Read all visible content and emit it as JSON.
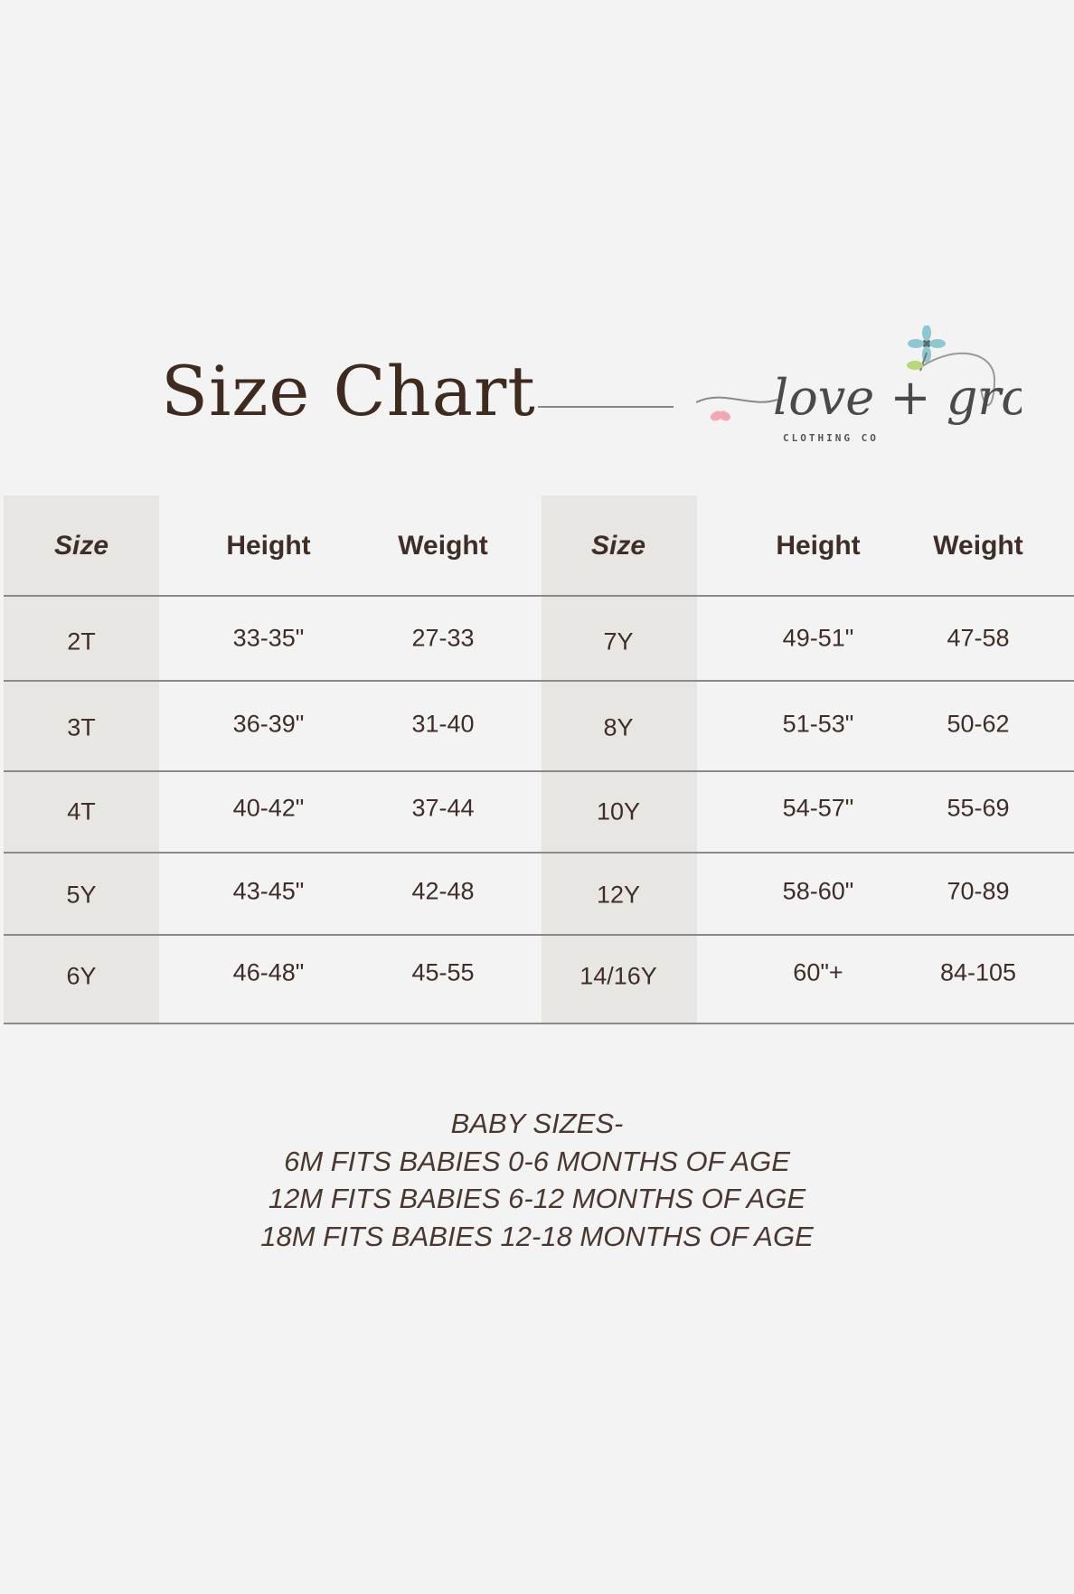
{
  "title": "Size Chart",
  "logo": {
    "text": "love + grow",
    "subtext": "CLOTHING CO",
    "colors": {
      "heart": "#f2a7b5",
      "flower": "#8fc7d1",
      "leaf": "#b7d77a",
      "ink": "#555555"
    }
  },
  "colors": {
    "background": "#f3f3f3",
    "shade": "#e8e6e3",
    "text": "#3f2e27",
    "rule": "#8c8987"
  },
  "table": {
    "left": {
      "headers": [
        "Size",
        "Height",
        "Weight"
      ],
      "rows": [
        [
          "2T",
          "33-35\"",
          "27-33"
        ],
        [
          "3T",
          "36-39\"",
          "31-40"
        ],
        [
          "4T",
          "40-42\"",
          "37-44"
        ],
        [
          "5Y",
          "43-45\"",
          "42-48"
        ],
        [
          "6Y",
          "46-48\"",
          "45-55"
        ]
      ]
    },
    "right": {
      "headers": [
        "Size",
        "Height",
        "Weight"
      ],
      "rows": [
        [
          "7Y",
          "49-51\"",
          "47-58"
        ],
        [
          "8Y",
          "51-53\"",
          "50-62"
        ],
        [
          "10Y",
          "54-57\"",
          "55-69"
        ],
        [
          "12Y",
          "58-60\"",
          "70-89"
        ],
        [
          "14/16Y",
          "60\"+",
          "84-105"
        ]
      ]
    }
  },
  "baby_sizes": [
    "BABY SIZES-",
    "6M FITS BABIES 0-6 MONTHS OF AGE",
    "12M FITS BABIES 6-12 MONTHS OF AGE",
    "18M FITS BABIES 12-18 MONTHS OF AGE"
  ]
}
